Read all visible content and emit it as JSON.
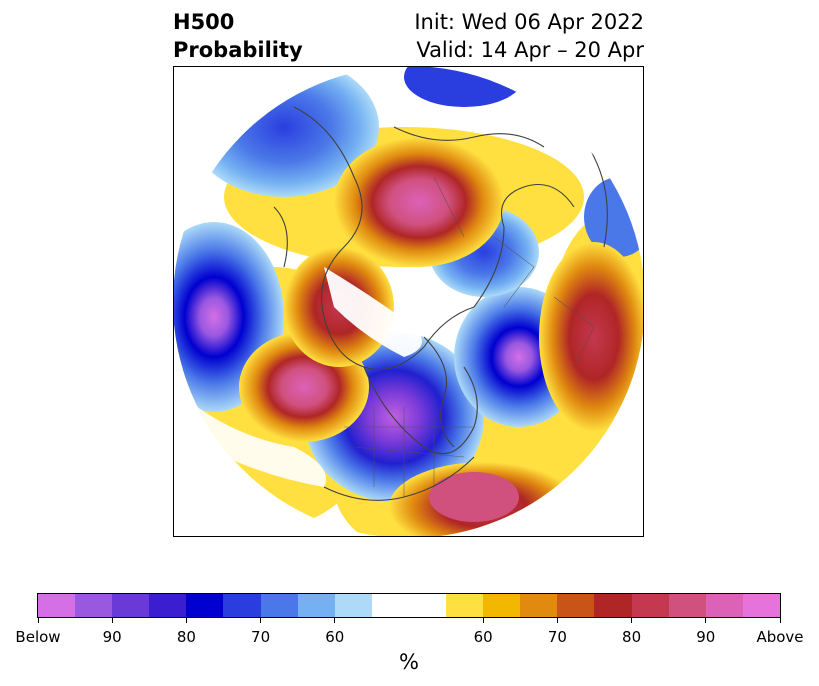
{
  "title": {
    "left_line1": "H500",
    "left_line2": "Probability",
    "right_line1": "Init: Wed 06 Apr 2022",
    "right_line2": "Valid: 14 Apr – 20 Apr"
  },
  "colorbar": {
    "colors": [
      "#d46fe6",
      "#9a58e0",
      "#6a3ad8",
      "#3a1ed0",
      "#0000d0",
      "#2a3ee0",
      "#4a78e8",
      "#74b0f2",
      "#acdaf8",
      "#ffffff",
      "#ffffff",
      "#ffe040",
      "#f2b800",
      "#e08a10",
      "#c85418",
      "#b02626",
      "#c43850",
      "#d0507e",
      "#dc62b8",
      "#e673dc"
    ],
    "tick_labels": [
      "Below",
      "90",
      "80",
      "70",
      "60",
      "60",
      "70",
      "80",
      "90",
      "Above"
    ],
    "unit": "%"
  }
}
